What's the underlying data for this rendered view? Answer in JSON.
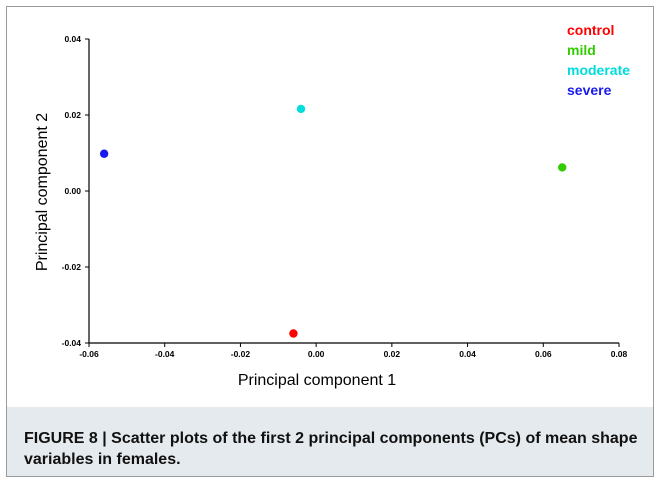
{
  "chart_data": {
    "type": "scatter",
    "xlabel": "Principal component 1",
    "ylabel": "Principal component 2",
    "xlim": [
      -0.06,
      0.08
    ],
    "ylim": [
      -0.04,
      0.04
    ],
    "x_ticks": [
      -0.06,
      -0.04,
      -0.02,
      0.0,
      0.02,
      0.04,
      0.06,
      0.08
    ],
    "x_tick_labels": [
      "-0.06",
      "-0.04",
      "-0.02",
      "0.00",
      "0.02",
      "0.04",
      "0.06",
      "0.08"
    ],
    "y_ticks": [
      -0.04,
      -0.02,
      0.0,
      0.02,
      0.04
    ],
    "y_tick_labels": [
      "-0.04",
      "-0.02",
      "0.00",
      "0.02",
      "0.04"
    ],
    "grid": false,
    "legend_position": "top-right",
    "series": [
      {
        "name": "control",
        "color": "#ff0000",
        "x": [
          -0.006
        ],
        "y": [
          -0.0375
        ]
      },
      {
        "name": "mild",
        "color": "#33cc00",
        "x": [
          0.065
        ],
        "y": [
          0.0062
        ]
      },
      {
        "name": "moderate",
        "color": "#00dddd",
        "x": [
          -0.004
        ],
        "y": [
          0.0216
        ]
      },
      {
        "name": "severe",
        "color": "#1a1aee",
        "x": [
          -0.056
        ],
        "y": [
          0.0098
        ]
      }
    ]
  },
  "caption": "FIGURE 8 | Scatter plots of the first 2 principal components (PCs) of mean shape variables in females."
}
